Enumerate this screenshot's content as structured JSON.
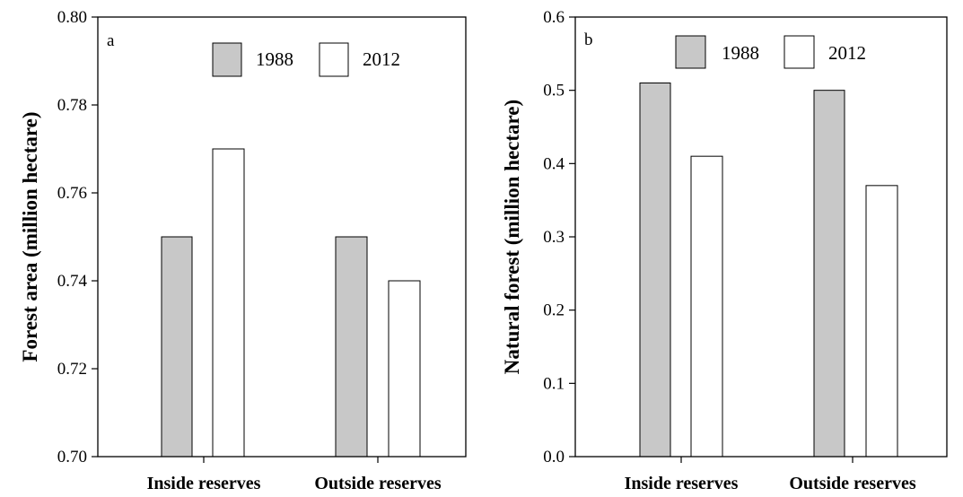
{
  "chart_data": [
    {
      "type": "bar",
      "panel_label": "a",
      "categories": [
        "Inside reserves",
        "Outside reserves"
      ],
      "series": [
        {
          "name": "1988",
          "values": [
            0.75,
            0.75
          ],
          "color": "#c8c8c8"
        },
        {
          "name": "2012",
          "values": [
            0.77,
            0.74
          ],
          "color": "#ffffff"
        }
      ],
      "ylabel": "Forest area (million hectare)",
      "ylim": [
        0.7,
        0.8
      ],
      "yticks": [
        "0.70",
        "0.72",
        "0.74",
        "0.76",
        "0.78",
        "0.80"
      ],
      "legend_placement": "top-center",
      "grid": false
    },
    {
      "type": "bar",
      "panel_label": "b",
      "categories": [
        "Inside reserves",
        "Outside reserves"
      ],
      "series": [
        {
          "name": "1988",
          "values": [
            0.51,
            0.5
          ],
          "color": "#c8c8c8"
        },
        {
          "name": "2012",
          "values": [
            0.41,
            0.37
          ],
          "color": "#ffffff"
        }
      ],
      "ylabel": "Natural forest (million hectare)",
      "ylim": [
        0.0,
        0.6
      ],
      "yticks": [
        "0.0",
        "0.1",
        "0.2",
        "0.3",
        "0.4",
        "0.5",
        "0.6"
      ],
      "legend_placement": "top-center",
      "grid": false
    }
  ]
}
